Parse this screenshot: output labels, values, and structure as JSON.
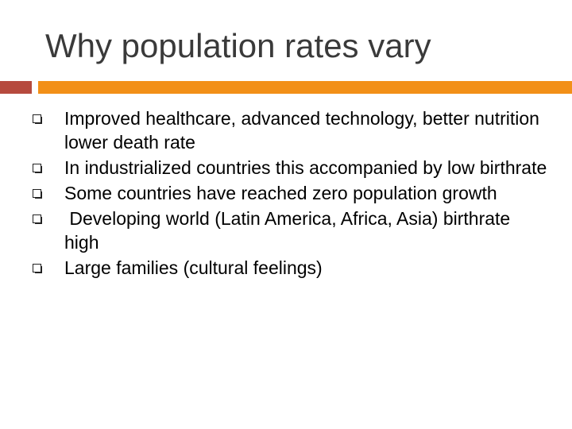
{
  "slide": {
    "title": "Why population rates vary",
    "accent_colors": {
      "left_rule": "#b64a3e",
      "right_rule": "#f29018"
    },
    "bullet_icon": "square-bullet-icon",
    "bullets": [
      {
        "text": "Improved healthcare, advanced technology, better nutrition lower death rate"
      },
      {
        "text": "In industrialized countries this accompanied by low birthrate"
      },
      {
        "text": "Some countries have reached zero population growth"
      },
      {
        "text": " Developing world (Latin America, Africa, Asia) birthrate high"
      },
      {
        "text": "Large families (cultural feelings)"
      }
    ]
  }
}
